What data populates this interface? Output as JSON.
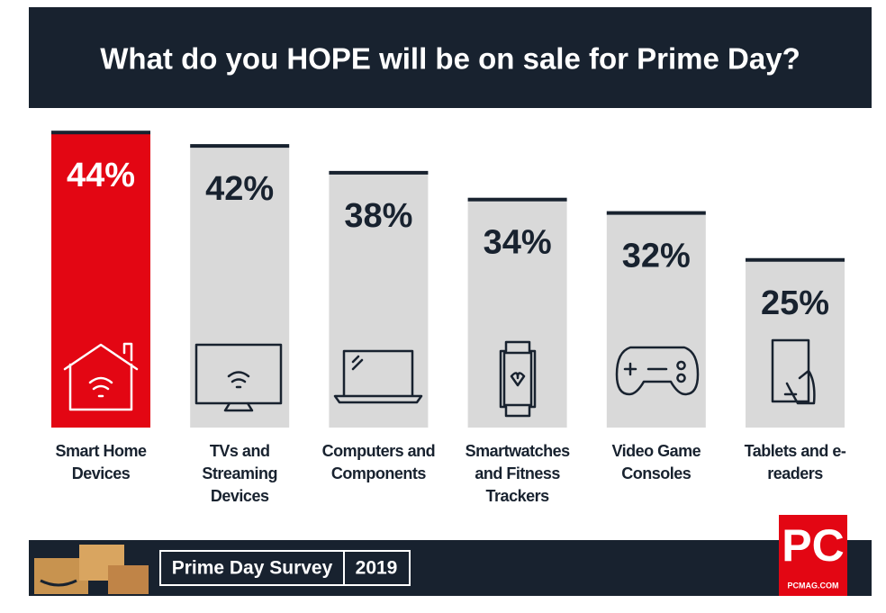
{
  "chart_data": {
    "type": "bar",
    "title": "What do you HOPE will be on sale for Prime Day?",
    "categories": [
      "Smart Home Devices",
      "TVs and Streaming Devices",
      "Computers and Components",
      "Smartwatches and Fitness Trackers",
      "Video Game Consoles",
      "Tablets and e-readers"
    ],
    "values": [
      44,
      42,
      38,
      34,
      32,
      25
    ],
    "value_labels": [
      "44%",
      "42%",
      "38%",
      "34%",
      "32%",
      "25%"
    ],
    "colors": [
      "#e30613",
      "#d9d9d9",
      "#d9d9d9",
      "#d9d9d9",
      "#d9d9d9",
      "#d9d9d9"
    ],
    "footer": {
      "survey": "Prime Day Survey",
      "year": "2019",
      "logo": "PC",
      "site": "PCMAG.COM"
    }
  }
}
